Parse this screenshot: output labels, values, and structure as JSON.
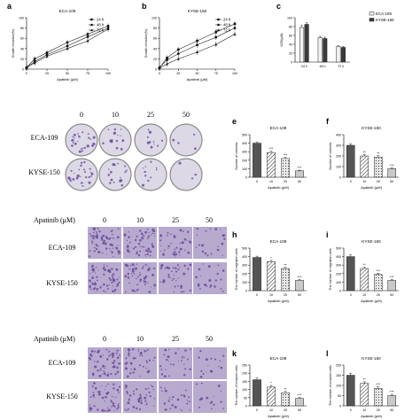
{
  "figure": {
    "panel_letters": {
      "a": "a",
      "b": "b",
      "c": "c",
      "e": "e",
      "f": "f",
      "h": "h",
      "i": "i",
      "k": "k",
      "l": "l"
    },
    "row_labels": {
      "colony": [
        "ECA-109",
        "KYSE-150"
      ],
      "migration": [
        "ECA-109",
        "KYSE-150"
      ],
      "invasion": [
        "ECA-109",
        "KYSE-150"
      ]
    },
    "dose_header": "Apatinib (μM)",
    "dose_columns": [
      "0",
      "10",
      "25",
      "50"
    ],
    "colors": {
      "bar_dark": "#3a3a3a",
      "bar_light": "#f2f2f2",
      "stain": "#6b4e9a",
      "stain_bg": "#b8a9cf",
      "dish_bg": "#dcd8e6"
    }
  },
  "chart_data": [
    {
      "id": "a",
      "type": "line",
      "title": "ECA-109",
      "xlabel": "Apatinib (μM)",
      "ylabel": "Growth inhibition(%)",
      "xlim": [
        0,
        100
      ],
      "ylim": [
        0,
        100
      ],
      "xticks": [
        "0",
        "25",
        "50",
        "75",
        "100"
      ],
      "yticks": [
        "0",
        "20",
        "40",
        "60",
        "80",
        "100"
      ],
      "legend_position": "top-right",
      "series": [
        {
          "name": "24 h",
          "marker": "square",
          "x": [
            0,
            10,
            25,
            50,
            75,
            100
          ],
          "y": [
            2,
            15,
            28,
            45,
            63,
            80
          ]
        },
        {
          "name": "48 h",
          "marker": "circle",
          "x": [
            0,
            10,
            25,
            50,
            75,
            100
          ],
          "y": [
            3,
            20,
            32,
            52,
            68,
            84
          ]
        },
        {
          "name": "72 h",
          "marker": "triangle",
          "x": [
            0,
            10,
            25,
            50,
            75,
            100
          ],
          "y": [
            4,
            12,
            25,
            40,
            55,
            78
          ]
        }
      ]
    },
    {
      "id": "b",
      "type": "line",
      "title": "KYSE-150",
      "xlabel": "Apatinib (μM)",
      "ylabel": "Growth inhibition(%)",
      "xlim": [
        0,
        100
      ],
      "ylim": [
        0,
        100
      ],
      "xticks": [
        "0",
        "25",
        "50",
        "75",
        "100"
      ],
      "yticks": [
        "0",
        "20",
        "40",
        "60",
        "80",
        "100"
      ],
      "legend_position": "top-right",
      "series": [
        {
          "name": "24 h",
          "marker": "square",
          "x": [
            0,
            10,
            25,
            50,
            75,
            100
          ],
          "y": [
            2,
            22,
            38,
            55,
            72,
            88
          ]
        },
        {
          "name": "48 h",
          "marker": "circle",
          "x": [
            0,
            10,
            25,
            50,
            75,
            100
          ],
          "y": [
            3,
            18,
            30,
            47,
            62,
            80
          ]
        },
        {
          "name": "72 h",
          "marker": "triangle",
          "x": [
            0,
            10,
            25,
            50,
            75,
            100
          ],
          "y": [
            2,
            10,
            20,
            33,
            48,
            68
          ]
        }
      ]
    },
    {
      "id": "c",
      "type": "bar",
      "title": "",
      "xlabel": "",
      "ylabel": "IC50(μM)",
      "categories": [
        "24 h",
        "48 h",
        "72 h"
      ],
      "ylim": [
        0,
        100
      ],
      "yticks": [
        "0",
        "20",
        "40",
        "60",
        "80",
        "100"
      ],
      "legend_position": "right",
      "series": [
        {
          "name": "ECA-109",
          "fill": "light",
          "values": [
            78,
            55,
            35
          ],
          "errors": [
            5,
            3,
            2
          ]
        },
        {
          "name": "KYSE-150",
          "fill": "dark",
          "values": [
            85,
            53,
            33
          ],
          "errors": [
            4,
            3,
            2
          ]
        }
      ]
    },
    {
      "id": "e",
      "type": "bar",
      "title": "ECA-109",
      "xlabel": "Apatinib (μM)",
      "ylabel": "Number of colonies",
      "categories": [
        "0",
        "10",
        "25",
        "50"
      ],
      "ylim": [
        0,
        500
      ],
      "yticks": [
        "0",
        "100",
        "200",
        "300",
        "400",
        "500"
      ],
      "values": [
        400,
        290,
        220,
        75
      ],
      "errors": [
        15,
        15,
        12,
        8
      ],
      "annotations": [
        "",
        "***",
        "***",
        "***"
      ]
    },
    {
      "id": "f",
      "type": "bar",
      "title": "KYSE-150",
      "xlabel": "Apatinib (μM)",
      "ylabel": "Number of colonies",
      "categories": [
        "0",
        "10",
        "25",
        "50"
      ],
      "ylim": [
        0,
        400
      ],
      "yticks": [
        "0",
        "100",
        "200",
        "300",
        "400"
      ],
      "values": [
        300,
        200,
        190,
        80
      ],
      "errors": [
        15,
        12,
        12,
        8
      ],
      "annotations": [
        "",
        "**",
        "**",
        "***"
      ]
    },
    {
      "id": "h",
      "type": "bar",
      "title": "ECA-109",
      "xlabel": "Apatinib (μM)",
      "ylabel": "The number of migration cells",
      "categories": [
        "0",
        "10",
        "25",
        "50"
      ],
      "ylim": [
        0,
        500
      ],
      "yticks": [
        "0",
        "100",
        "200",
        "300",
        "400",
        "500"
      ],
      "values": [
        390,
        340,
        260,
        120
      ],
      "errors": [
        15,
        15,
        12,
        10
      ],
      "annotations": [
        "",
        "*",
        "**",
        "***"
      ]
    },
    {
      "id": "i",
      "type": "bar",
      "title": "KYSE-150",
      "xlabel": "Apatinib (μM)",
      "ylabel": "The number of migration cells",
      "categories": [
        "0",
        "10",
        "25",
        "50"
      ],
      "ylim": [
        0,
        500
      ],
      "yticks": [
        "0",
        "100",
        "200",
        "300",
        "400",
        "500"
      ],
      "values": [
        400,
        260,
        190,
        120
      ],
      "errors": [
        20,
        15,
        12,
        10
      ],
      "annotations": [
        "",
        "**",
        "***",
        "***"
      ]
    },
    {
      "id": "k",
      "type": "bar",
      "title": "ECA-109",
      "xlabel": "Apatinib (μM)",
      "ylabel": "The number of invasion cells",
      "categories": [
        "0",
        "10",
        "25",
        "50"
      ],
      "ylim": [
        0,
        250
      ],
      "yticks": [
        "0",
        "50",
        "100",
        "150",
        "200",
        "250"
      ],
      "values": [
        160,
        115,
        80,
        45
      ],
      "errors": [
        10,
        10,
        8,
        6
      ],
      "annotations": [
        "",
        "*",
        "**",
        "***"
      ]
    },
    {
      "id": "l",
      "type": "bar",
      "title": "KYSE-150",
      "xlabel": "Apatinib (μM)",
      "ylabel": "The number of invasion cells",
      "categories": [
        "0",
        "10",
        "25",
        "50"
      ],
      "ylim": [
        0,
        200
      ],
      "yticks": [
        "0",
        "50",
        "100",
        "150",
        "200"
      ],
      "values": [
        150,
        110,
        85,
        50
      ],
      "errors": [
        10,
        8,
        8,
        6
      ],
      "annotations": [
        "",
        "**",
        "***",
        "***"
      ]
    }
  ]
}
